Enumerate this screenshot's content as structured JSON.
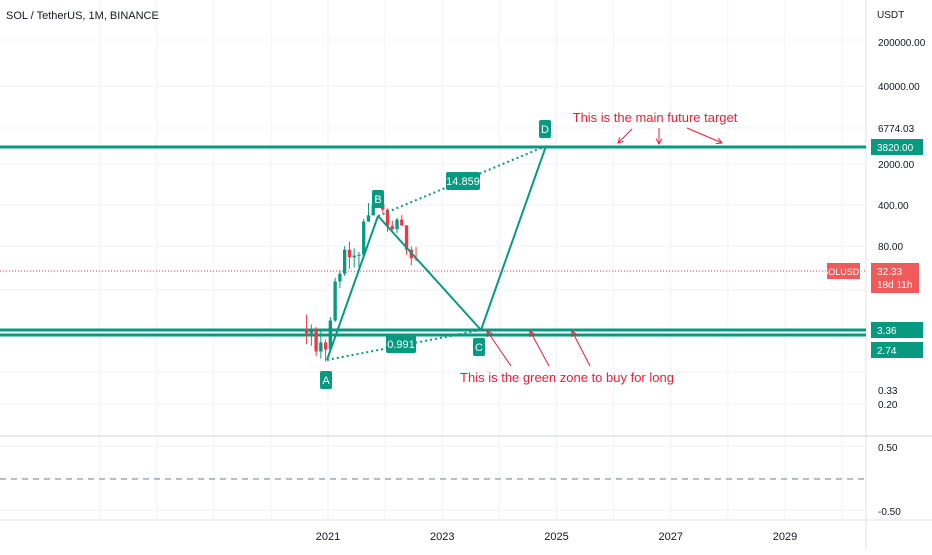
{
  "header": {
    "symbol_title": "SOL / TetherUS, 1M, BINANCE",
    "currency": "USDT"
  },
  "colors": {
    "accent": "#089981",
    "bear": "#f23645",
    "annotation": "#e91e3a",
    "price_badge": "#f05a5a",
    "grid": "#f0f3fa"
  },
  "chart_data": [
    {
      "type": "candlestick",
      "symbol": "SOLUSDT",
      "interval": "1M",
      "exchange": "BINANCE",
      "y_scale": "log",
      "y_tick_labels": [
        "200000.00",
        "40000.00",
        "6774.03",
        "2000.00",
        "400.00",
        "80.00",
        "0.33",
        "0.20"
      ],
      "x_tick_labels": [
        "2021",
        "2023",
        "2025",
        "2027",
        "2029"
      ],
      "last_price": {
        "value": "32.33",
        "label": "SOLUSDT",
        "countdown": "18d 11h"
      },
      "horizontal_levels": [
        {
          "value": "3820.00"
        },
        {
          "value": "3.36"
        },
        {
          "value": "2.74"
        }
      ],
      "pattern_points": [
        {
          "label": "A",
          "date": "2020-12",
          "price": 1.0
        },
        {
          "label": "B",
          "date": "2021-11",
          "price": 259
        },
        {
          "label": "C",
          "date": "2023-08",
          "price": 3.0
        },
        {
          "label": "D",
          "date": "2024-11",
          "price": 3820
        }
      ],
      "ratios": [
        {
          "value": "14.859",
          "between": "B-D"
        },
        {
          "value": "0.991",
          "between": "A-C"
        }
      ],
      "annotations": [
        "This is the main future target",
        "This is the green zone to buy for long"
      ],
      "candles": [
        {
          "date": "2020-08",
          "o": 3.0,
          "h": 4.9,
          "l": 1.8,
          "c": 2.6
        },
        {
          "date": "2020-09",
          "o": 2.6,
          "h": 3.5,
          "l": 1.7,
          "c": 3.0
        },
        {
          "date": "2020-10",
          "o": 3.0,
          "h": 3.2,
          "l": 1.2,
          "c": 1.4
        },
        {
          "date": "2020-11",
          "o": 1.4,
          "h": 2.8,
          "l": 1.1,
          "c": 1.9
        },
        {
          "date": "2020-12",
          "o": 1.9,
          "h": 2.1,
          "l": 1.0,
          "c": 1.5
        },
        {
          "date": "2021-01",
          "o": 1.5,
          "h": 4.5,
          "l": 1.4,
          "c": 4.0
        },
        {
          "date": "2021-02",
          "o": 4.0,
          "h": 17.0,
          "l": 3.8,
          "c": 15.0
        },
        {
          "date": "2021-03",
          "o": 15.0,
          "h": 22.0,
          "l": 12.0,
          "c": 19.5
        },
        {
          "date": "2021-04",
          "o": 19.5,
          "h": 50.0,
          "l": 18.0,
          "c": 44.0
        },
        {
          "date": "2021-05",
          "o": 44.0,
          "h": 58.0,
          "l": 23.0,
          "c": 34.0
        },
        {
          "date": "2021-06",
          "o": 34.0,
          "h": 46.0,
          "l": 24.0,
          "c": 36.0
        },
        {
          "date": "2021-07",
          "o": 36.0,
          "h": 41.0,
          "l": 24.0,
          "c": 37.0
        },
        {
          "date": "2021-08",
          "o": 37.0,
          "h": 125.0,
          "l": 36.0,
          "c": 114.0
        },
        {
          "date": "2021-09",
          "o": 114.0,
          "h": 214.0,
          "l": 113.0,
          "c": 141.0
        },
        {
          "date": "2021-10",
          "o": 141.0,
          "h": 218.0,
          "l": 139.0,
          "c": 202.0
        },
        {
          "date": "2021-11",
          "o": 202.0,
          "h": 259.0,
          "l": 191.0,
          "c": 208.0
        },
        {
          "date": "2021-12",
          "o": 208.0,
          "h": 240.0,
          "l": 157.0,
          "c": 170.0
        },
        {
          "date": "2022-01",
          "o": 170.0,
          "h": 179.0,
          "l": 81.0,
          "c": 99.0
        },
        {
          "date": "2022-02",
          "o": 99.0,
          "h": 118.0,
          "l": 79.0,
          "c": 88.0
        },
        {
          "date": "2022-03",
          "o": 88.0,
          "h": 130.0,
          "l": 77.0,
          "c": 122.0
        },
        {
          "date": "2022-04",
          "o": 122.0,
          "h": 143.0,
          "l": 98.0,
          "c": 100.0
        },
        {
          "date": "2022-05",
          "o": 100.0,
          "h": 101.0,
          "l": 37.0,
          "c": 44.0
        },
        {
          "date": "2022-06",
          "o": 44.0,
          "h": 49.0,
          "l": 26.0,
          "c": 33.0
        },
        {
          "date": "2022-07",
          "o": 33.0,
          "h": 48.0,
          "l": 30.0,
          "c": 32.33
        }
      ],
      "indicator_pane": {
        "y_tick_labels": [
          "0.50",
          "-0.50"
        ]
      }
    }
  ]
}
